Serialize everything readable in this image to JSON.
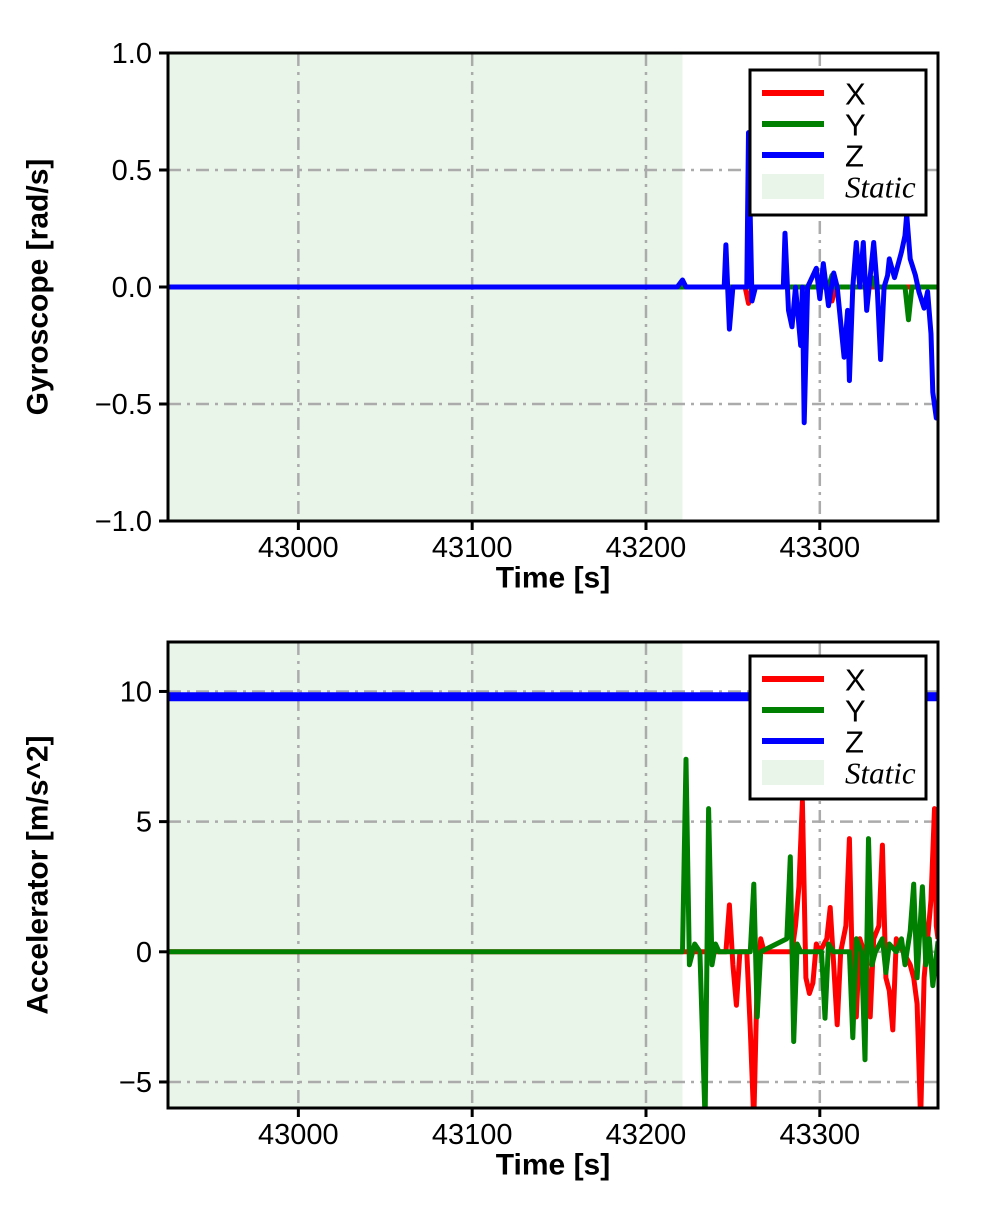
{
  "figure": {
    "description": "IMU sensor recording, static interval followed by motion",
    "panels": 2
  },
  "chart_data": [
    {
      "name": "gyroscope",
      "type": "line",
      "title": "",
      "xlabel": "Time [s]",
      "ylabel": "Gyroscope [rad/s]",
      "xlim": [
        42925,
        43368
      ],
      "ylim": [
        -1.0,
        1.0
      ],
      "xticks": {
        "values": [
          43000,
          43100,
          43200,
          43300
        ],
        "labels": [
          "43000",
          "43100",
          "43200",
          "43300"
        ]
      },
      "yticks": {
        "values": [
          1.0,
          0.5,
          0.0,
          -0.5,
          -1.0
        ],
        "labels": [
          "1.0",
          "0.5",
          "0.0",
          "−0.5",
          "−1.0"
        ]
      },
      "grid": {
        "on": true,
        "style": "dash-dot",
        "color": "#ababab"
      },
      "static_region": {
        "label": "Static",
        "x0": 42925,
        "x1": 43221,
        "fill": "#e9f5e9"
      },
      "legend": {
        "position": "upper right",
        "entries": [
          {
            "label": "X",
            "color": "#ff0000",
            "type": "line"
          },
          {
            "label": "Y",
            "color": "#008000",
            "type": "line"
          },
          {
            "label": "Z",
            "color": "#0000ff",
            "type": "line"
          },
          {
            "label": "Static",
            "color": "#e9f5e9",
            "type": "patch",
            "italic": true
          }
        ]
      },
      "series": [
        {
          "name": "X",
          "color": "#ff0000",
          "line_width": 5,
          "points": [
            [
              42925,
              0
            ],
            [
              43257,
              0
            ],
            [
              43259,
              -0.07
            ],
            [
              43261,
              0
            ],
            [
              43305,
              0
            ],
            [
              43307,
              -0.06
            ],
            [
              43309,
              0
            ],
            [
              43368,
              0
            ]
          ]
        },
        {
          "name": "Y",
          "color": "#008000",
          "line_width": 5,
          "points": [
            [
              42925,
              0
            ],
            [
              43305,
              0
            ],
            [
              43307,
              0.05
            ],
            [
              43309,
              0
            ],
            [
              43328,
              0
            ],
            [
              43330,
              0.04
            ],
            [
              43332,
              0
            ],
            [
              43349,
              0
            ],
            [
              43351,
              -0.14
            ],
            [
              43353,
              0
            ],
            [
              43368,
              0
            ]
          ]
        },
        {
          "name": "Z",
          "color": "#0000ff",
          "line_width": 5,
          "points": [
            [
              42925,
              0
            ],
            [
              43218,
              0
            ],
            [
              43221,
              0.03
            ],
            [
              43223,
              0
            ],
            [
              43245,
              0
            ],
            [
              43246,
              0.18
            ],
            [
              43248,
              -0.18
            ],
            [
              43250,
              0
            ],
            [
              43258,
              0
            ],
            [
              43259,
              0.66
            ],
            [
              43261,
              -0.06
            ],
            [
              43263,
              0
            ],
            [
              43279,
              0
            ],
            [
              43280,
              0.23
            ],
            [
              43282,
              -0.1
            ],
            [
              43284,
              -0.17
            ],
            [
              43286,
              0
            ],
            [
              43289,
              -0.25
            ],
            [
              43290,
              0
            ],
            [
              43291,
              -0.58
            ],
            [
              43293,
              0
            ],
            [
              43298,
              0.08
            ],
            [
              43300,
              -0.05
            ],
            [
              43302,
              0.1
            ],
            [
              43305,
              -0.08
            ],
            [
              43308,
              0.06
            ],
            [
              43310,
              0
            ],
            [
              43314,
              -0.3
            ],
            [
              43316,
              -0.1
            ],
            [
              43317,
              -0.4
            ],
            [
              43319,
              0
            ],
            [
              43321,
              0.19
            ],
            [
              43323,
              0
            ],
            [
              43325,
              0.19
            ],
            [
              43327,
              -0.1
            ],
            [
              43331,
              0.19
            ],
            [
              43333,
              0
            ],
            [
              43335,
              -0.31
            ],
            [
              43337,
              0
            ],
            [
              43339,
              0.05
            ],
            [
              43340,
              0.12
            ],
            [
              43343,
              0.04
            ],
            [
              43347,
              0.15
            ],
            [
              43349,
              0.22
            ],
            [
              43350,
              0.31
            ],
            [
              43352,
              0.12
            ],
            [
              43355,
              0.05
            ],
            [
              43357,
              -0.02
            ],
            [
              43360,
              -0.09
            ],
            [
              43362,
              -0.02
            ],
            [
              43364,
              -0.2
            ],
            [
              43365,
              -0.45
            ],
            [
              43367,
              -0.56
            ],
            [
              43368,
              -0.53
            ]
          ]
        }
      ]
    },
    {
      "name": "accelerator",
      "type": "line",
      "title": "",
      "xlabel": "Time [s]",
      "ylabel": "Accelerator [m/s^2]",
      "xlim": [
        42925,
        43368
      ],
      "ylim": [
        -6.0,
        11.9
      ],
      "xticks": {
        "values": [
          43000,
          43100,
          43200,
          43300
        ],
        "labels": [
          "43000",
          "43100",
          "43200",
          "43300"
        ]
      },
      "yticks": {
        "values": [
          10,
          5,
          0,
          -5
        ],
        "labels": [
          "10",
          "5",
          "0",
          "−5"
        ]
      },
      "grid": {
        "on": true,
        "style": "dash-dot",
        "color": "#ababab"
      },
      "static_region": {
        "label": "Static",
        "x0": 42925,
        "x1": 43221,
        "fill": "#e9f5e9"
      },
      "legend": {
        "position": "upper right",
        "entries": [
          {
            "label": "X",
            "color": "#ff0000",
            "type": "line"
          },
          {
            "label": "Y",
            "color": "#008000",
            "type": "line"
          },
          {
            "label": "Z",
            "color": "#0000ff",
            "type": "line"
          },
          {
            "label": "Static",
            "color": "#e9f5e9",
            "type": "patch",
            "italic": true
          }
        ]
      },
      "series": [
        {
          "name": "X",
          "color": "#ff0000",
          "line_width": 5,
          "points": [
            [
              42925,
              0
            ],
            [
              43222,
              0
            ],
            [
              43246,
              0
            ],
            [
              43248,
              1.8
            ],
            [
              43250,
              -0.5
            ],
            [
              43252,
              -2.05
            ],
            [
              43254,
              0
            ],
            [
              43258,
              0
            ],
            [
              43260,
              -3.0
            ],
            [
              43262,
              -6.5
            ],
            [
              43264,
              -1.0
            ],
            [
              43266,
              0.5
            ],
            [
              43268,
              0
            ],
            [
              43284,
              0
            ],
            [
              43286,
              1.0
            ],
            [
              43288,
              2.5
            ],
            [
              43290,
              5.77
            ],
            [
              43292,
              -1.0
            ],
            [
              43294,
              -1.6
            ],
            [
              43296,
              -1.2
            ],
            [
              43298,
              0.3
            ],
            [
              43300,
              0
            ],
            [
              43304,
              0.5
            ],
            [
              43306,
              1.7
            ],
            [
              43308,
              -0.5
            ],
            [
              43310,
              -2.8
            ],
            [
              43312,
              0
            ],
            [
              43315,
              1.0
            ],
            [
              43317,
              4.35
            ],
            [
              43319,
              -1.5
            ],
            [
              43321,
              -2.5
            ],
            [
              43323,
              0.5
            ],
            [
              43327,
              -0.3
            ],
            [
              43329,
              -2.5
            ],
            [
              43331,
              0.5
            ],
            [
              43334,
              1.0
            ],
            [
              43336,
              4.1
            ],
            [
              43338,
              -1.0
            ],
            [
              43340,
              -1.5
            ],
            [
              43342,
              -3.0
            ],
            [
              43344,
              0.5
            ],
            [
              43348,
              0
            ],
            [
              43352,
              -0.5
            ],
            [
              43354,
              -1.0
            ],
            [
              43356,
              -2.0
            ],
            [
              43358,
              -6.5
            ],
            [
              43360,
              -1.0
            ],
            [
              43362,
              0.5
            ],
            [
              43364,
              2.0
            ],
            [
              43366,
              5.5
            ],
            [
              43367,
              1.0
            ],
            [
              43368,
              0.5
            ]
          ]
        },
        {
          "name": "Y",
          "color": "#008000",
          "line_width": 5,
          "points": [
            [
              42925,
              0
            ],
            [
              43221,
              0
            ],
            [
              43223,
              7.4
            ],
            [
              43225,
              -0.5
            ],
            [
              43228,
              0.3
            ],
            [
              43231,
              0
            ],
            [
              43234,
              -6.5
            ],
            [
              43236,
              5.5
            ],
            [
              43238,
              -0.5
            ],
            [
              43240,
              0.3
            ],
            [
              43242,
              0
            ],
            [
              43260,
              0
            ],
            [
              43262,
              2.6
            ],
            [
              43264,
              -2.5
            ],
            [
              43266,
              0
            ],
            [
              43281,
              0.5
            ],
            [
              43283,
              3.65
            ],
            [
              43285,
              -3.45
            ],
            [
              43287,
              0.3
            ],
            [
              43289,
              0
            ],
            [
              43301,
              0
            ],
            [
              43303,
              -2.55
            ],
            [
              43305,
              0.3
            ],
            [
              43308,
              0
            ],
            [
              43317,
              0
            ],
            [
              43319,
              -3.3
            ],
            [
              43321,
              0.5
            ],
            [
              43324,
              0
            ],
            [
              43326,
              -4.15
            ],
            [
              43328,
              4.35
            ],
            [
              43330,
              -0.5
            ],
            [
              43332,
              0
            ],
            [
              43336,
              0.5
            ],
            [
              43338,
              -0.8
            ],
            [
              43340,
              0.3
            ],
            [
              43344,
              0
            ],
            [
              43347,
              0.5
            ],
            [
              43349,
              -0.5
            ],
            [
              43352,
              0.8
            ],
            [
              43354,
              2.6
            ],
            [
              43356,
              -1.0
            ],
            [
              43359,
              2.5
            ],
            [
              43361,
              -0.5
            ],
            [
              43363,
              0.5
            ],
            [
              43365,
              -1.3
            ],
            [
              43368,
              0.4
            ]
          ]
        },
        {
          "name": "Z",
          "color": "#0000ff",
          "line_width": 9,
          "points": [
            [
              42925,
              9.8
            ],
            [
              43368,
              9.8
            ]
          ]
        }
      ]
    }
  ]
}
